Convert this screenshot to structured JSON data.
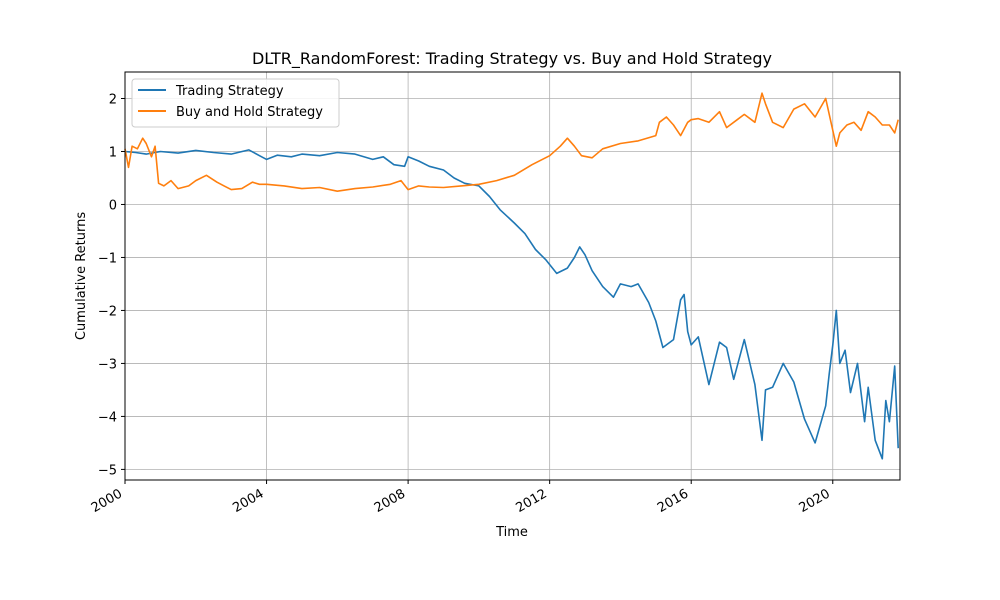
{
  "chart_data": {
    "type": "line",
    "title": "DLTR_RandomForest: Trading Strategy vs. Buy and Hold Strategy",
    "xlabel": "Time",
    "ylabel": "Cumulative Returns",
    "xlim": [
      2000.0,
      2021.9
    ],
    "ylim": [
      -5.2,
      2.5
    ],
    "xticks": [
      2000,
      2004,
      2008,
      2012,
      2016,
      2020
    ],
    "yticks": [
      -5,
      -4,
      -3,
      -2,
      -1,
      0,
      1,
      2
    ],
    "ytick_labels": [
      "−5",
      "−4",
      "−3",
      "−2",
      "−1",
      "0",
      "1",
      "2"
    ],
    "grid": true,
    "legend_position": "top-left",
    "series": [
      {
        "name": "Trading Strategy",
        "color": "#1f77b4",
        "x": [
          2000.0,
          2000.3,
          2000.6,
          2001.0,
          2001.5,
          2002.0,
          2002.5,
          2003.0,
          2003.5,
          2003.8,
          2004.0,
          2004.3,
          2004.7,
          2005.0,
          2005.5,
          2006.0,
          2006.5,
          2007.0,
          2007.3,
          2007.6,
          2007.9,
          2008.0,
          2008.3,
          2008.6,
          2009.0,
          2009.3,
          2009.6,
          2010.0,
          2010.3,
          2010.6,
          2011.0,
          2011.3,
          2011.6,
          2011.9,
          2012.2,
          2012.5,
          2012.7,
          2012.85,
          2013.0,
          2013.2,
          2013.5,
          2013.8,
          2014.0,
          2014.3,
          2014.5,
          2014.8,
          2015.0,
          2015.2,
          2015.5,
          2015.7,
          2015.8,
          2015.9,
          2016.0,
          2016.2,
          2016.5,
          2016.8,
          2017.0,
          2017.2,
          2017.5,
          2017.8,
          2018.0,
          2018.1,
          2018.3,
          2018.6,
          2018.9,
          2019.2,
          2019.5,
          2019.8,
          2019.9,
          2020.0,
          2020.1,
          2020.2,
          2020.35,
          2020.5,
          2020.7,
          2020.9,
          2021.0,
          2021.2,
          2021.4,
          2021.5,
          2021.6,
          2021.75,
          2021.85
        ],
        "values": [
          1.0,
          0.98,
          0.95,
          1.0,
          0.97,
          1.02,
          0.98,
          0.95,
          1.03,
          0.92,
          0.85,
          0.93,
          0.9,
          0.95,
          0.92,
          0.98,
          0.95,
          0.85,
          0.9,
          0.75,
          0.72,
          0.9,
          0.82,
          0.72,
          0.65,
          0.5,
          0.4,
          0.35,
          0.15,
          -0.1,
          -0.35,
          -0.55,
          -0.85,
          -1.05,
          -1.3,
          -1.2,
          -1.0,
          -0.8,
          -0.95,
          -1.25,
          -1.55,
          -1.75,
          -1.5,
          -1.55,
          -1.5,
          -1.85,
          -2.2,
          -2.7,
          -2.55,
          -1.8,
          -1.7,
          -2.4,
          -2.65,
          -2.5,
          -3.4,
          -2.6,
          -2.7,
          -3.3,
          -2.55,
          -3.4,
          -4.45,
          -3.5,
          -3.45,
          -3.0,
          -3.35,
          -4.05,
          -4.5,
          -3.8,
          -3.2,
          -2.65,
          -2.0,
          -3.0,
          -2.75,
          -3.55,
          -3.0,
          -4.1,
          -3.45,
          -4.45,
          -4.8,
          -3.7,
          -4.1,
          -3.05,
          -4.6
        ]
      },
      {
        "name": "Buy and Hold Strategy",
        "color": "#ff7f0e",
        "x": [
          2000.0,
          2000.1,
          2000.2,
          2000.35,
          2000.5,
          2000.6,
          2000.75,
          2000.85,
          2000.95,
          2001.1,
          2001.3,
          2001.5,
          2001.8,
          2002.0,
          2002.3,
          2002.6,
          2002.8,
          2003.0,
          2003.3,
          2003.6,
          2003.8,
          2004.0,
          2004.5,
          2005.0,
          2005.5,
          2006.0,
          2006.5,
          2007.0,
          2007.5,
          2007.8,
          2008.0,
          2008.3,
          2008.6,
          2009.0,
          2009.5,
          2010.0,
          2010.5,
          2011.0,
          2011.5,
          2012.0,
          2012.3,
          2012.5,
          2012.7,
          2012.9,
          2013.2,
          2013.5,
          2014.0,
          2014.5,
          2015.0,
          2015.1,
          2015.3,
          2015.5,
          2015.7,
          2015.9,
          2016.0,
          2016.2,
          2016.5,
          2016.8,
          2017.0,
          2017.3,
          2017.5,
          2017.8,
          2018.0,
          2018.1,
          2018.3,
          2018.6,
          2018.9,
          2019.2,
          2019.5,
          2019.8,
          2019.95,
          2020.1,
          2020.2,
          2020.4,
          2020.6,
          2020.8,
          2021.0,
          2021.2,
          2021.4,
          2021.6,
          2021.75,
          2021.85
        ],
        "values": [
          1.05,
          0.7,
          1.1,
          1.05,
          1.25,
          1.15,
          0.9,
          1.1,
          0.4,
          0.35,
          0.45,
          0.3,
          0.35,
          0.45,
          0.55,
          0.42,
          0.35,
          0.28,
          0.3,
          0.42,
          0.38,
          0.38,
          0.35,
          0.3,
          0.32,
          0.25,
          0.3,
          0.33,
          0.38,
          0.45,
          0.28,
          0.35,
          0.33,
          0.32,
          0.35,
          0.38,
          0.45,
          0.55,
          0.75,
          0.92,
          1.1,
          1.25,
          1.1,
          0.92,
          0.88,
          1.05,
          1.15,
          1.2,
          1.3,
          1.55,
          1.65,
          1.5,
          1.3,
          1.55,
          1.6,
          1.62,
          1.55,
          1.75,
          1.45,
          1.6,
          1.7,
          1.55,
          2.1,
          1.9,
          1.55,
          1.45,
          1.8,
          1.9,
          1.65,
          2.0,
          1.55,
          1.1,
          1.35,
          1.5,
          1.55,
          1.4,
          1.75,
          1.65,
          1.5,
          1.5,
          1.35,
          1.6
        ]
      }
    ]
  }
}
